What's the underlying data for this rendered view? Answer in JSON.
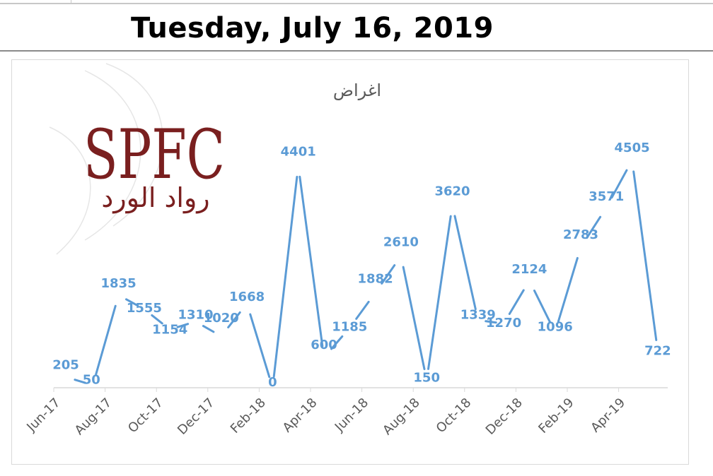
{
  "header": {
    "date": "Tuesday, July 16, 2019"
  },
  "logo": {
    "initials": "SPFC",
    "arabic_name": "رواد الورد"
  },
  "colors": {
    "series": "#5b9bd5",
    "logo": "#7a1f1f"
  },
  "chart_data": {
    "type": "line",
    "title": "اغراض",
    "xlabel": "",
    "ylabel": "",
    "grid": false,
    "legend": "none",
    "x": [
      "Jun-17",
      "Jul-17",
      "Aug-17",
      "Sep-17",
      "Oct-17",
      "Nov-17",
      "Dec-17",
      "Jan-18",
      "Feb-18",
      "Mar-18",
      "Apr-18",
      "May-18",
      "Jun-18",
      "Jul-18",
      "Aug-18",
      "Sep-18",
      "Oct-18",
      "Nov-18",
      "Dec-18",
      "Jan-19",
      "Feb-19",
      "Mar-19",
      "Apr-19",
      "May-19"
    ],
    "values": [
      205,
      50,
      1835,
      1555,
      1154,
      1310,
      1020,
      1668,
      0,
      4401,
      600,
      1185,
      1882,
      2610,
      150,
      3620,
      1339,
      1270,
      2124,
      1096,
      2783,
      3571,
      4505,
      722
    ],
    "x_tick_labels": [
      "Jun-17",
      "Aug-17",
      "Oct-17",
      "Dec-17",
      "Feb-18",
      "Apr-18",
      "Jun-18",
      "Aug-18",
      "Oct-18",
      "Dec-18",
      "Feb-19",
      "Apr-19"
    ],
    "ylim": [
      0,
      4800
    ]
  }
}
